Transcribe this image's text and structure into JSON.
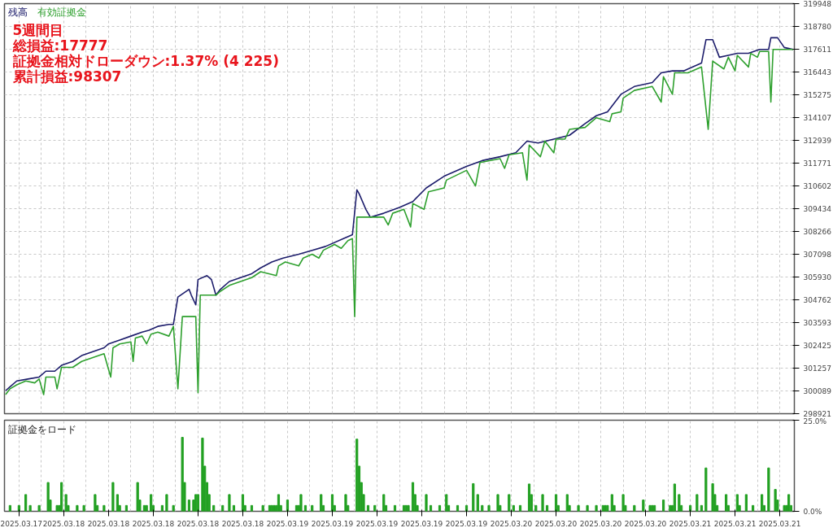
{
  "chart_data": [
    {
      "type": "line",
      "legend": "top left",
      "grid": true,
      "tick_labels": "y",
      "annotations": [
        "5週間目",
        "総損益:17777",
        "証拠金相対ドローダウン:1.37% (4 225)",
        "累計損益:98307"
      ],
      "categories": [
        null,
        null,
        null,
        null,
        null,
        null,
        "2025.03.17",
        null,
        null,
        null,
        null,
        null,
        null,
        null,
        null,
        null,
        null,
        null,
        null,
        null,
        null,
        null,
        null,
        null,
        null,
        null,
        "2025.03.18",
        null,
        null,
        null,
        null,
        null,
        null,
        null,
        null,
        null,
        null,
        null,
        null,
        null,
        null,
        null,
        null,
        null,
        null,
        null,
        "2025.03.18",
        null,
        null,
        null,
        null,
        null,
        null,
        null,
        null,
        null,
        null,
        null,
        null,
        null,
        null,
        null,
        null,
        null,
        null,
        null,
        "2025.03.18",
        null,
        null,
        null,
        null,
        null,
        null,
        null,
        null,
        null,
        null,
        null,
        null,
        null,
        null,
        null,
        null,
        null,
        null,
        null,
        "2025.03.18",
        null,
        null,
        null,
        null,
        null,
        null,
        null,
        null,
        null,
        null,
        null,
        null,
        null,
        null,
        null,
        null,
        null,
        null,
        null,
        "2025.03.18",
        null,
        null,
        null,
        null,
        null,
        null,
        null,
        null,
        null,
        null,
        null,
        null,
        null,
        null,
        null,
        null,
        null,
        null,
        null,
        "2025.03.19",
        null,
        null,
        null,
        null,
        null,
        null,
        null,
        null,
        null,
        null,
        null,
        null,
        null,
        null,
        null,
        null,
        null,
        null,
        null,
        "2025.03.19",
        null,
        null,
        null,
        null,
        null,
        null,
        null,
        null,
        null,
        null,
        null,
        null,
        null,
        null,
        null,
        null,
        null,
        null,
        null,
        "2025.03.19",
        null,
        null,
        null,
        null,
        null,
        null,
        null,
        null,
        null,
        null,
        null,
        null,
        null,
        null,
        null,
        null,
        null,
        null,
        null,
        "2025.03.19",
        null,
        null,
        null,
        null,
        null,
        null,
        null,
        null,
        null,
        null,
        null,
        null,
        null,
        null,
        null,
        null,
        null,
        null,
        null,
        "2025.03.19",
        null,
        null,
        null,
        null,
        null,
        null,
        null,
        null,
        null,
        null,
        null,
        null,
        null,
        null,
        null,
        null,
        null,
        null,
        null,
        "2025.03.20",
        null,
        null,
        null,
        null,
        null,
        null,
        null,
        null,
        null,
        null,
        null,
        null,
        null,
        null,
        null,
        null,
        null,
        null,
        null,
        "2025.03.20",
        null,
        null,
        null,
        null,
        null,
        null,
        null,
        null,
        null,
        null,
        null,
        null,
        null,
        null,
        null,
        null,
        null,
        null,
        null,
        "2025.03.20",
        null,
        null,
        null,
        null,
        null,
        null,
        null,
        null,
        null,
        null,
        null,
        null,
        null,
        null,
        null,
        null,
        null,
        null,
        null,
        "2025.03.20",
        null,
        null,
        null,
        null,
        null,
        null,
        null,
        null,
        null,
        null,
        null,
        null,
        null,
        null,
        null,
        null,
        null,
        null,
        null,
        "2025.03.21",
        null,
        null,
        null,
        null,
        null,
        null,
        null,
        null,
        null,
        null,
        null,
        null,
        null,
        null,
        null,
        null,
        null,
        null,
        null,
        "2025.03.21",
        null,
        null,
        null,
        null,
        null,
        null,
        null,
        null,
        null,
        null,
        null,
        null,
        null,
        null,
        null,
        null,
        null,
        null,
        null,
        "2025.03.21",
        null,
        null,
        null,
        null,
        null,
        null
      ],
      "ylim": [
        298921,
        319948
      ],
      "yticks": [
        298921,
        300089,
        301257,
        302425,
        303593,
        304762,
        305930,
        307098,
        308266,
        309434,
        310602,
        311771,
        312939,
        314107,
        315275,
        316443,
        317611,
        318780,
        319948
      ],
      "series": [
        {
          "name": "残高",
          "color": "#1c1c6b",
          "values": [
            300100,
            null,
            300300,
            null,
            null,
            300600,
            null,
            null,
            null,
            null,
            300700,
            null,
            null,
            null,
            null,
            300800,
            null,
            null,
            301100,
            null,
            null,
            null,
            301100,
            null,
            null,
            301400,
            null,
            null,
            null,
            null,
            301600,
            null,
            null,
            null,
            301900,
            null,
            null,
            null,
            null,
            302100,
            null,
            null,
            null,
            null,
            302300,
            null,
            302500,
            null,
            null,
            null,
            null,
            302700,
            null,
            null,
            null,
            null,
            302900,
            null,
            null,
            null,
            null,
            303100,
            null,
            null,
            303200,
            null,
            null,
            null,
            303400,
            null,
            null,
            null,
            null,
            303500,
            null,
            303500,
            null,
            304900,
            null,
            null,
            null,
            null,
            305300,
            305000,
            null,
            304500,
            305800,
            null,
            null,
            null,
            306000,
            null,
            305800,
            null,
            305000,
            null,
            305300,
            null,
            null,
            null,
            305700,
            null,
            null,
            null,
            null,
            305900,
            null,
            null,
            null,
            null,
            306100,
            null,
            null,
            null,
            306400,
            null,
            null,
            null,
            null,
            306700,
            null,
            null,
            null,
            null,
            306900,
            null,
            null,
            null,
            null,
            null,
            null,
            307100,
            null,
            null,
            null,
            null,
            null,
            307300,
            null,
            null,
            null,
            null,
            null,
            307500,
            null,
            null,
            null,
            null,
            null,
            null,
            null,
            307900,
            null,
            null,
            null,
            308100,
            null,
            310400,
            310200,
            null,
            null,
            309400,
            null,
            309000,
            null,
            null,
            null,
            null,
            null,
            309200,
            null,
            null,
            null,
            null,
            null,
            null,
            309500,
            null,
            null,
            null,
            null,
            null,
            309800,
            null,
            null,
            null,
            null,
            null,
            310500,
            null,
            null,
            null,
            null,
            null,
            null,
            null,
            311100,
            null,
            null,
            null,
            null,
            null,
            null,
            null,
            null,
            null,
            311600,
            null,
            null,
            null,
            null,
            null,
            null,
            311900,
            null,
            null,
            null,
            null,
            null,
            null,
            null,
            312100,
            null,
            null,
            null,
            null,
            null,
            null,
            312300,
            null,
            null,
            null,
            null,
            312900,
            null,
            null,
            null,
            null,
            312800,
            null,
            null,
            null,
            null,
            null,
            null,
            313000,
            null,
            null,
            null,
            null,
            null,
            null,
            313200,
            null,
            null,
            null,
            null,
            null,
            null,
            313800,
            null,
            null,
            null,
            null,
            314200,
            null,
            null,
            null,
            null,
            314400,
            null,
            null,
            null,
            null,
            null,
            315300,
            null,
            null,
            null,
            null,
            null,
            315700,
            null,
            null,
            null,
            null,
            null,
            null,
            null,
            315900,
            null,
            null,
            null,
            316400,
            null,
            null,
            null,
            null,
            316500,
            null,
            null,
            null,
            null,
            316500,
            null,
            316600,
            null,
            null,
            null,
            null,
            null,
            316900,
            null,
            318100,
            null,
            null,
            318100,
            null,
            null,
            317200,
            null,
            null,
            null,
            317300,
            null,
            null,
            null,
            317400,
            null,
            null,
            null,
            null,
            317400,
            null,
            null,
            null,
            null,
            317600,
            null,
            null,
            null,
            317600,
            318200,
            null,
            null,
            318200,
            null,
            null,
            317700,
            null,
            null,
            null,
            317600
          ]
        },
        {
          "name": "有効証拠金",
          "color": "#2ea02e",
          "values": [
            299900,
            null,
            300200,
            null,
            null,
            300400,
            null,
            null,
            null,
            300600,
            null,
            null,
            null,
            300500,
            null,
            300700,
            null,
            299900,
            300800,
            null,
            null,
            null,
            300800,
            300200,
            null,
            301300,
            null,
            null,
            null,
            null,
            301300,
            null,
            null,
            null,
            301600,
            null,
            null,
            null,
            null,
            301800,
            null,
            null,
            null,
            null,
            302000,
            null,
            null,
            300800,
            302300,
            null,
            null,
            302500,
            null,
            null,
            null,
            null,
            302600,
            301600,
            302800,
            null,
            null,
            302900,
            null,
            302500,
            null,
            303000,
            null,
            null,
            303100,
            null,
            null,
            null,
            null,
            302900,
            null,
            303400,
            null,
            300200,
            null,
            303900,
            null,
            null,
            null,
            null,
            null,
            303900,
            300000,
            305000,
            null,
            null,
            null,
            null,
            null,
            null,
            305000,
            null,
            305200,
            null,
            null,
            null,
            305500,
            null,
            null,
            null,
            null,
            305700,
            null,
            null,
            null,
            null,
            305900,
            null,
            null,
            null,
            306200,
            null,
            null,
            null,
            null,
            null,
            null,
            306000,
            306500,
            null,
            null,
            306700,
            null,
            null,
            null,
            null,
            null,
            306500,
            null,
            306900,
            null,
            null,
            null,
            307100,
            null,
            null,
            306900,
            null,
            307300,
            null,
            null,
            null,
            null,
            307600,
            null,
            null,
            307400,
            null,
            null,
            307800,
            null,
            307900,
            303900,
            309000,
            null,
            null,
            null,
            null,
            null,
            null,
            null,
            null,
            null,
            null,
            null,
            309000,
            null,
            308600,
            null,
            309200,
            null,
            null,
            null,
            null,
            309400,
            null,
            null,
            308500,
            309700,
            null,
            null,
            null,
            null,
            309400,
            null,
            310300,
            null,
            null,
            null,
            null,
            null,
            null,
            310500,
            310900,
            null,
            null,
            null,
            null,
            null,
            null,
            null,
            null,
            311400,
            null,
            null,
            null,
            310600,
            null,
            311800,
            null,
            null,
            null,
            null,
            null,
            null,
            null,
            null,
            312000,
            null,
            311500,
            null,
            312200,
            null,
            null,
            null,
            null,
            null,
            312300,
            null,
            310900,
            312700,
            null,
            null,
            null,
            null,
            312100,
            null,
            312900,
            null,
            null,
            null,
            312300,
            313000,
            null,
            null,
            null,
            313000,
            null,
            313500,
            null,
            null,
            null,
            null,
            null,
            null,
            313600,
            null,
            null,
            null,
            null,
            314100,
            null,
            null,
            null,
            null,
            null,
            313900,
            314300,
            null,
            null,
            null,
            314400,
            315100,
            null,
            null,
            null,
            null,
            315500,
            null,
            null,
            null,
            null,
            null,
            null,
            null,
            315700,
            null,
            null,
            null,
            314900,
            316200,
            null,
            null,
            null,
            315300,
            316400,
            null,
            null,
            null,
            null,
            null,
            316400,
            null,
            null,
            null,
            null,
            null,
            316700,
            null,
            null,
            313500,
            null,
            317000,
            null,
            null,
            null,
            null,
            316600,
            null,
            317200,
            null,
            null,
            316500,
            317300,
            null,
            null,
            null,
            null,
            316700,
            317400,
            null,
            null,
            317200,
            317500,
            null,
            null,
            null,
            317500,
            314900,
            317600,
            null,
            null,
            null,
            null,
            null,
            null,
            null,
            null,
            317600
          ]
        }
      ]
    },
    {
      "type": "bar",
      "title": "証拠金をロード",
      "color": "#22a022",
      "grid": "x",
      "categories": [
        null,
        null,
        null,
        null,
        null,
        null,
        "2025.03.17",
        null,
        null,
        null,
        null,
        null,
        null,
        null,
        null,
        null,
        null,
        null,
        null,
        null,
        null,
        null,
        null,
        null,
        null,
        null,
        "2025.03.18",
        null,
        null,
        null,
        null,
        null,
        null,
        null,
        null,
        null,
        null,
        null,
        null,
        null,
        null,
        null,
        null,
        null,
        null,
        null,
        "2025.03.18",
        null,
        null,
        null,
        null,
        null,
        null,
        null,
        null,
        null,
        null,
        null,
        null,
        null,
        null,
        null,
        null,
        null,
        null,
        null,
        "2025.03.18",
        null,
        null,
        null,
        null,
        null,
        null,
        null,
        null,
        null,
        null,
        null,
        null,
        null,
        null,
        null,
        null,
        null,
        null,
        null,
        "2025.03.18",
        null,
        null,
        null,
        null,
        null,
        null,
        null,
        null,
        null,
        null,
        null,
        null,
        null,
        null,
        null,
        null,
        null,
        null,
        null,
        "2025.03.18",
        null,
        null,
        null,
        null,
        null,
        null,
        null,
        null,
        null,
        null,
        null,
        null,
        null,
        null,
        null,
        null,
        null,
        null,
        null,
        "2025.03.19",
        null,
        null,
        null,
        null,
        null,
        null,
        null,
        null,
        null,
        null,
        null,
        null,
        null,
        null,
        null,
        null,
        null,
        null,
        null,
        "2025.03.19",
        null,
        null,
        null,
        null,
        null,
        null,
        null,
        null,
        null,
        null,
        null,
        null,
        null,
        null,
        null,
        null,
        null,
        null,
        null,
        "2025.03.19",
        null,
        null,
        null,
        null,
        null,
        null,
        null,
        null,
        null,
        null,
        null,
        null,
        null,
        null,
        null,
        null,
        null,
        null,
        null,
        "2025.03.19",
        null,
        null,
        null,
        null,
        null,
        null,
        null,
        null,
        null,
        null,
        null,
        null,
        null,
        null,
        null,
        null,
        null,
        null,
        null,
        "2025.03.19",
        null,
        null,
        null,
        null,
        null,
        null,
        null,
        null,
        null,
        null,
        null,
        null,
        null,
        null,
        null,
        null,
        null,
        null,
        null,
        "2025.03.20",
        null,
        null,
        null,
        null,
        null,
        null,
        null,
        null,
        null,
        null,
        null,
        null,
        null,
        null,
        null,
        null,
        null,
        null,
        null,
        "2025.03.20",
        null,
        null,
        null,
        null,
        null,
        null,
        null,
        null,
        null,
        null,
        null,
        null,
        null,
        null,
        null,
        null,
        null,
        null,
        null,
        "2025.03.20",
        null,
        null,
        null,
        null,
        null,
        null,
        null,
        null,
        null,
        null,
        null,
        null,
        null,
        null,
        null,
        null,
        null,
        null,
        null,
        "2025.03.20",
        null,
        null,
        null,
        null,
        null,
        null,
        null,
        null,
        null,
        null,
        null,
        null,
        null,
        null,
        null,
        null,
        null,
        null,
        null,
        "2025.03.21",
        null,
        null,
        null,
        null,
        null,
        null,
        null,
        null,
        null,
        null,
        null,
        null,
        null,
        null,
        null,
        null,
        null,
        null,
        null,
        "2025.03.21",
        null,
        null,
        null,
        null,
        null,
        null,
        null,
        null,
        null,
        null,
        null,
        null,
        null,
        null,
        null,
        null,
        null,
        null,
        null,
        "2025.03.21",
        null,
        null,
        null,
        null,
        null,
        null
      ],
      "ylim": [
        0,
        25
      ],
      "yticks": [
        {
          "value": 0,
          "label": "0.0%"
        },
        {
          "value": 25,
          "label": "25.0%"
        }
      ],
      "values": [
        null,
        null,
        1.6,
        null,
        null,
        null,
        1.6,
        null,
        null,
        4.6,
        null,
        1.6,
        null,
        null,
        null,
        1.6,
        null,
        null,
        null,
        7.9,
        3.1,
        null,
        null,
        1.6,
        1.6,
        7.9,
        null,
        4.6,
        1.6,
        null,
        null,
        null,
        1.6,
        null,
        null,
        1.6,
        null,
        null,
        null,
        null,
        4.6,
        1.6,
        null,
        null,
        1.6,
        null,
        null,
        null,
        7.9,
        null,
        4.6,
        1.6,
        null,
        null,
        1.6,
        null,
        null,
        null,
        null,
        7.9,
        3.1,
        null,
        1.6,
        1.6,
        null,
        4.6,
        1.6,
        null,
        null,
        null,
        1.6,
        null,
        4.6,
        null,
        null,
        1.6,
        null,
        null,
        null,
        20.3,
        7.9,
        null,
        3.1,
        null,
        3.1,
        4.6,
        4.6,
        null,
        20.1,
        12.4,
        7.9,
        4.6,
        null,
        1.6,
        null,
        null,
        null,
        1.6,
        null,
        null,
        4.6,
        null,
        1.6,
        null,
        null,
        null,
        4.6,
        1.6,
        null,
        null,
        1.6,
        null,
        null,
        null,
        null,
        1.6,
        null,
        null,
        1.6,
        1.6,
        1.6,
        1.6,
        4.6,
        1.6,
        null,
        null,
        3.1,
        null,
        null,
        null,
        1.6,
        1.6,
        4.6,
        null,
        1.6,
        null,
        null,
        1.6,
        null,
        null,
        null,
        4.6,
        1.6,
        null,
        null,
        null,
        4.6,
        1.6,
        null,
        null,
        null,
        null,
        4.6,
        1.6,
        null,
        null,
        null,
        19.8,
        12.4,
        7.9,
        4.6,
        null,
        1.6,
        null,
        null,
        1.6,
        null,
        null,
        null,
        4.6,
        1.6,
        null,
        null,
        null,
        1.6,
        null,
        null,
        null,
        1.6,
        1.6,
        1.6,
        null,
        7.9,
        4.6,
        1.6,
        null,
        null,
        null,
        4.6,
        null,
        1.6,
        null,
        null,
        null,
        1.6,
        null,
        null,
        4.6,
        1.6,
        null,
        null,
        null,
        1.6,
        null,
        null,
        null,
        1.6,
        null,
        null,
        7.6,
        null,
        4.6,
        null,
        1.6,
        null,
        null,
        1.6,
        null,
        null,
        null,
        4.6,
        1.6,
        null,
        null,
        null,
        4.6,
        null,
        1.6,
        null,
        null,
        1.6,
        null,
        null,
        null,
        7.5,
        4.6,
        null,
        1.6,
        null,
        null,
        4.6,
        null,
        1.6,
        null,
        null,
        null,
        4.6,
        1.6,
        null,
        null,
        null,
        4.6,
        1.6,
        null,
        null,
        null,
        1.6,
        null,
        null,
        null,
        1.6,
        null,
        null,
        null,
        1.6,
        null,
        null,
        1.6,
        1.6,
        1.6,
        null,
        4.6,
        1.6,
        null,
        null,
        null,
        4.6,
        1.6,
        null,
        null,
        null,
        1.6,
        null,
        null,
        null,
        3.1,
        null,
        null,
        1.6,
        1.6,
        1.6,
        null,
        null,
        null,
        3.1,
        null,
        null,
        1.6,
        1.6,
        7.5,
        null,
        4.6,
        1.6,
        null,
        null,
        null,
        1.6,
        null,
        null,
        4.6,
        null,
        1.6,
        null,
        11.9,
        null,
        null,
        7.6,
        4.6,
        1.6,
        null,
        null,
        null,
        4.6,
        1.6,
        null,
        null,
        null,
        4.6,
        1.6,
        null,
        null,
        4.6,
        null,
        null,
        1.6,
        null,
        null,
        null,
        4.6,
        1.6,
        null,
        11.9,
        null,
        null,
        6.0,
        3.1,
        null,
        null,
        1.6,
        1.6,
        4.6,
        1.6,
        null
      ]
    }
  ]
}
